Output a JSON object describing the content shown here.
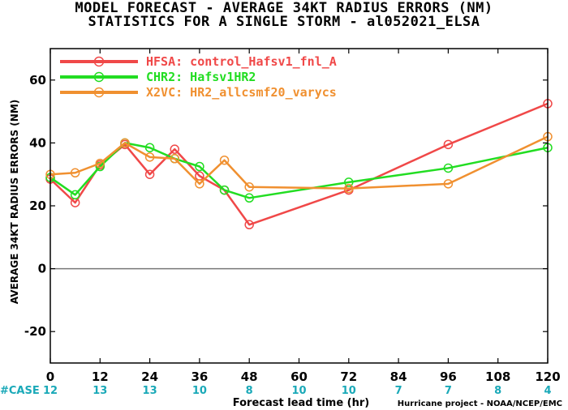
{
  "title_line1": "MODEL FORECAST - AVERAGE 34KT RADIUS ERRORS (NM)",
  "title_line2": "STATISTICS FOR A SINGLE STORM - al052021_ELSA",
  "credit": "Hurricane project - NOAA/NCEP/EMC",
  "case_label": "#CASE",
  "chart_data": {
    "type": "line",
    "xlabel": "Forecast lead time (hr)",
    "ylabel": "AVERAGE 34KT RADIUS ERRORS (NM)",
    "xlim": [
      0,
      120
    ],
    "ylim": [
      -30,
      70
    ],
    "xticks": [
      0,
      12,
      24,
      36,
      48,
      60,
      72,
      84,
      96,
      108,
      120
    ],
    "yticks": [
      -20,
      0,
      20,
      40,
      60
    ],
    "case_counts": [
      "12",
      "13",
      "13",
      "10",
      "8",
      "10",
      "10",
      "7",
      "7",
      "8",
      "4"
    ],
    "legend_position": "top-left",
    "zero_line": true,
    "series": [
      {
        "name": "HFSA: control_Hafsv1_fnl_A",
        "color": "#f04848",
        "x": [
          0,
          6,
          12,
          18,
          24,
          30,
          36,
          42,
          48,
          72,
          96,
          120
        ],
        "y": [
          28.5,
          21,
          33,
          39.5,
          30,
          38,
          29.5,
          25,
          14,
          25,
          39.5,
          52.5
        ]
      },
      {
        "name": "CHR2: Hafsv1HR2",
        "color": "#22dd22",
        "x": [
          0,
          6,
          12,
          18,
          24,
          30,
          36,
          42,
          48,
          72,
          96,
          120
        ],
        "y": [
          29,
          23.5,
          32.5,
          40,
          38.5,
          35,
          32.5,
          25,
          22.5,
          27.5,
          32,
          38.5
        ]
      },
      {
        "name": "X2VC: HR2_allcsmf20_varycs",
        "color": "#f09030",
        "x": [
          0,
          6,
          12,
          18,
          24,
          30,
          36,
          42,
          48,
          72,
          96,
          120
        ],
        "y": [
          30,
          30.5,
          33.5,
          40,
          35.5,
          35,
          27,
          34.5,
          26,
          25.5,
          27,
          42
        ]
      }
    ]
  }
}
